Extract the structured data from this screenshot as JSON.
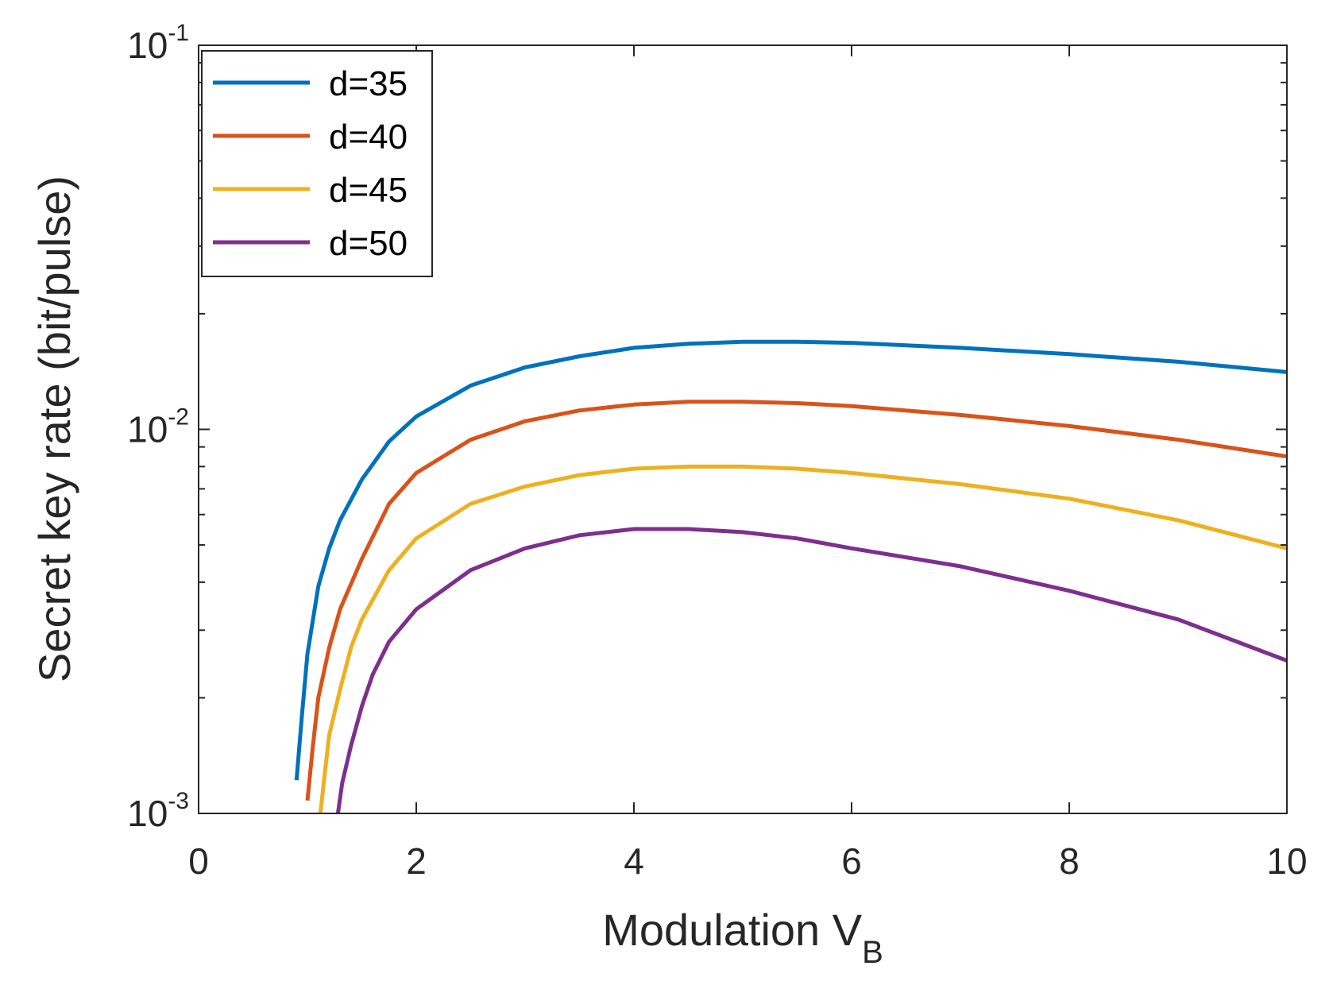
{
  "chart_data": {
    "type": "line",
    "title": "",
    "xlabel_main": "Modulation V",
    "xlabel_sub": "B",
    "ylabel": "Secret key rate (bit/pulse)",
    "yscale": "log",
    "xlim": [
      0,
      10
    ],
    "ylim": [
      0.001,
      0.1
    ],
    "xticks": [
      0,
      2,
      4,
      6,
      8,
      10
    ],
    "xtick_labels": [
      "0",
      "2",
      "4",
      "6",
      "8",
      "10"
    ],
    "yticks": [
      {
        "value": 0.001,
        "base": "10",
        "exp": "-3"
      },
      {
        "value": 0.01,
        "base": "10",
        "exp": "-2"
      },
      {
        "value": 0.1,
        "base": "10",
        "exp": "-1"
      }
    ],
    "legend_position": "top-left",
    "series": [
      {
        "name": "d=35",
        "color": "#0072BD",
        "x": [
          0.9,
          0.95,
          1.0,
          1.1,
          1.2,
          1.3,
          1.5,
          1.75,
          2.0,
          2.5,
          3.0,
          3.5,
          4.0,
          4.5,
          5.0,
          5.5,
          6.0,
          7.0,
          8.0,
          9.0,
          10.0
        ],
        "y": [
          0.00122,
          0.0018,
          0.0026,
          0.0039,
          0.0049,
          0.0058,
          0.0074,
          0.0093,
          0.0108,
          0.013,
          0.0145,
          0.0155,
          0.0163,
          0.0167,
          0.0169,
          0.0169,
          0.0168,
          0.0163,
          0.0157,
          0.015,
          0.0141
        ]
      },
      {
        "name": "d=40",
        "color": "#D95319",
        "x": [
          1.0,
          1.05,
          1.1,
          1.2,
          1.3,
          1.5,
          1.75,
          2.0,
          2.5,
          3.0,
          3.5,
          4.0,
          4.5,
          5.0,
          5.5,
          6.0,
          7.0,
          8.0,
          9.0,
          10.0
        ],
        "y": [
          0.00108,
          0.0015,
          0.002,
          0.0027,
          0.0034,
          0.0046,
          0.0064,
          0.0077,
          0.0094,
          0.0105,
          0.0112,
          0.0116,
          0.0118,
          0.0118,
          0.0117,
          0.0115,
          0.0109,
          0.0102,
          0.0094,
          0.0085
        ]
      },
      {
        "name": "d=45",
        "color": "#EDB120",
        "x": [
          1.12,
          1.15,
          1.2,
          1.3,
          1.4,
          1.5,
          1.75,
          2.0,
          2.5,
          3.0,
          3.5,
          4.0,
          4.5,
          5.0,
          5.5,
          6.0,
          7.0,
          8.0,
          9.0,
          10.0
        ],
        "y": [
          0.001,
          0.0012,
          0.0016,
          0.0021,
          0.0027,
          0.0032,
          0.0043,
          0.0052,
          0.0064,
          0.0071,
          0.0076,
          0.0079,
          0.008,
          0.008,
          0.0079,
          0.0077,
          0.0072,
          0.0066,
          0.0058,
          0.0049
        ]
      },
      {
        "name": "d=50",
        "color": "#7E2F8E",
        "x": [
          1.28,
          1.32,
          1.4,
          1.5,
          1.6,
          1.75,
          2.0,
          2.5,
          3.0,
          3.5,
          4.0,
          4.5,
          5.0,
          5.5,
          6.0,
          7.0,
          8.0,
          9.0,
          10.0
        ],
        "y": [
          0.001,
          0.0012,
          0.0015,
          0.0019,
          0.0023,
          0.0028,
          0.0034,
          0.0043,
          0.0049,
          0.0053,
          0.0055,
          0.0055,
          0.0054,
          0.0052,
          0.0049,
          0.0044,
          0.0038,
          0.0032,
          0.0025
        ]
      }
    ]
  }
}
